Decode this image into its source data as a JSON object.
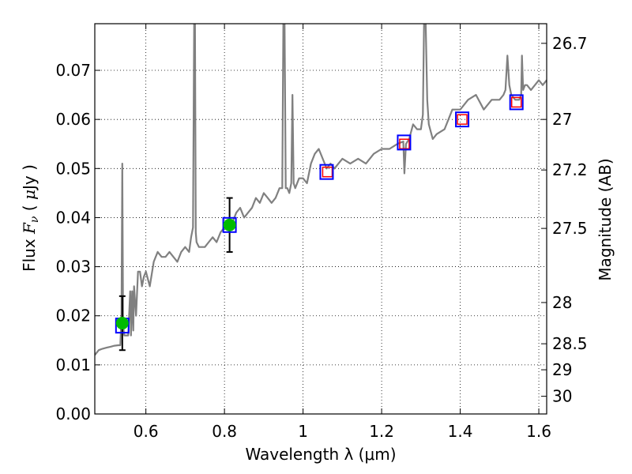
{
  "chart_data": {
    "type": "line",
    "xlabel": "Wavelength  λ (μm)",
    "ylabel": "Flux  F_ν  ( μJy )",
    "ylabel_parts": {
      "prefix": "Flux  ",
      "sym": "F",
      "sub": "ν",
      "mu": "μ",
      "open": "(  ",
      "unit": "Jy )"
    },
    "y2label": "Magnitude (AB)",
    "xlim": [
      0.47,
      1.62
    ],
    "ylim": [
      0.0,
      0.0795
    ],
    "xticks": [
      0.6,
      0.8,
      1.0,
      1.2,
      1.4,
      1.6
    ],
    "xtick_labels": [
      "0.6",
      "0.8",
      "1",
      "1.2",
      "1.4",
      "1.6"
    ],
    "yticks": [
      0.0,
      0.01,
      0.02,
      0.03,
      0.04,
      0.05,
      0.06,
      0.07
    ],
    "ytick_labels": [
      "0.00",
      "0.01",
      "0.02",
      "0.03",
      "0.04",
      "0.05",
      "0.06",
      "0.07"
    ],
    "y2ticks": [
      {
        "flux": 0.0755,
        "label": "26.7"
      },
      {
        "flux": 0.06,
        "label": "27"
      },
      {
        "flux": 0.0497,
        "label": "27.2"
      },
      {
        "flux": 0.0378,
        "label": "27.5"
      },
      {
        "flux": 0.0227,
        "label": "28"
      },
      {
        "flux": 0.0143,
        "label": "28.5"
      },
      {
        "flux": 0.009,
        "label": "29"
      },
      {
        "flux": 0.0036,
        "label": "30"
      }
    ],
    "grid": true,
    "colors": {
      "spectrum": "#808080",
      "photometry_box": "#0000ff",
      "model_box": "#ff0000",
      "measured_point": "#00bb00",
      "errorbar": "#000000"
    },
    "spectrum": {
      "x": [
        0.47,
        0.48,
        0.49,
        0.5,
        0.51,
        0.52,
        0.53,
        0.535,
        0.538,
        0.54,
        0.542,
        0.545,
        0.55,
        0.555,
        0.56,
        0.562,
        0.565,
        0.568,
        0.57,
        0.575,
        0.58,
        0.585,
        0.59,
        0.595,
        0.6,
        0.61,
        0.62,
        0.63,
        0.64,
        0.65,
        0.66,
        0.67,
        0.68,
        0.69,
        0.7,
        0.71,
        0.715,
        0.72,
        0.723,
        0.725,
        0.727,
        0.729,
        0.735,
        0.74,
        0.75,
        0.76,
        0.77,
        0.78,
        0.79,
        0.8,
        0.81,
        0.82,
        0.83,
        0.84,
        0.85,
        0.86,
        0.87,
        0.88,
        0.89,
        0.9,
        0.91,
        0.92,
        0.93,
        0.94,
        0.947,
        0.95,
        0.953,
        0.956,
        0.96,
        0.965,
        0.97,
        0.973,
        0.976,
        0.98,
        0.99,
        1.0,
        1.01,
        1.02,
        1.03,
        1.04,
        1.05,
        1.06,
        1.07,
        1.08,
        1.09,
        1.1,
        1.12,
        1.14,
        1.16,
        1.18,
        1.2,
        1.22,
        1.24,
        1.255,
        1.258,
        1.262,
        1.27,
        1.28,
        1.29,
        1.3,
        1.305,
        1.308,
        1.312,
        1.316,
        1.32,
        1.33,
        1.34,
        1.36,
        1.38,
        1.4,
        1.42,
        1.44,
        1.46,
        1.48,
        1.5,
        1.51,
        1.515,
        1.52,
        1.525,
        1.53,
        1.54,
        1.55,
        1.555,
        1.557,
        1.56,
        1.565,
        1.57,
        1.58,
        1.59,
        1.6,
        1.61,
        1.62
      ],
      "y": [
        0.012,
        0.013,
        0.0133,
        0.0135,
        0.0137,
        0.0139,
        0.014,
        0.014,
        0.02,
        0.051,
        0.018,
        0.016,
        0.016,
        0.016,
        0.025,
        0.016,
        0.025,
        0.017,
        0.026,
        0.02,
        0.029,
        0.029,
        0.026,
        0.028,
        0.029,
        0.026,
        0.031,
        0.033,
        0.032,
        0.032,
        0.033,
        0.032,
        0.031,
        0.033,
        0.034,
        0.033,
        0.036,
        0.038,
        0.08,
        0.08,
        0.037,
        0.035,
        0.034,
        0.034,
        0.034,
        0.035,
        0.036,
        0.035,
        0.037,
        0.038,
        0.0385,
        0.039,
        0.041,
        0.042,
        0.04,
        0.041,
        0.042,
        0.044,
        0.043,
        0.045,
        0.044,
        0.043,
        0.044,
        0.046,
        0.046,
        0.08,
        0.08,
        0.046,
        0.046,
        0.045,
        0.047,
        0.065,
        0.047,
        0.046,
        0.048,
        0.048,
        0.047,
        0.051,
        0.053,
        0.054,
        0.052,
        0.05,
        0.051,
        0.05,
        0.051,
        0.052,
        0.051,
        0.052,
        0.051,
        0.053,
        0.054,
        0.054,
        0.055,
        0.0555,
        0.049,
        0.055,
        0.056,
        0.059,
        0.058,
        0.058,
        0.061,
        0.08,
        0.08,
        0.064,
        0.059,
        0.056,
        0.057,
        0.058,
        0.062,
        0.062,
        0.064,
        0.065,
        0.062,
        0.064,
        0.064,
        0.065,
        0.066,
        0.073,
        0.067,
        0.065,
        0.064,
        0.064,
        0.065,
        0.073,
        0.066,
        0.067,
        0.067,
        0.066,
        0.067,
        0.068,
        0.067,
        0.068
      ]
    },
    "photometry_boxes": [
      {
        "x": 0.54,
        "y": 0.018
      },
      {
        "x": 0.813,
        "y": 0.0385
      },
      {
        "x": 1.06,
        "y": 0.0493
      },
      {
        "x": 1.257,
        "y": 0.0553
      },
      {
        "x": 1.405,
        "y": 0.06
      },
      {
        "x": 1.543,
        "y": 0.0635
      }
    ],
    "model_boxes": [
      {
        "x": 1.062,
        "y": 0.0493
      },
      {
        "x": 1.258,
        "y": 0.055
      },
      {
        "x": 1.405,
        "y": 0.06
      },
      {
        "x": 1.543,
        "y": 0.0635
      }
    ],
    "measured_points": [
      {
        "x": 0.54,
        "y": 0.0185,
        "yerr_low": 0.013,
        "yerr_high": 0.024
      },
      {
        "x": 0.813,
        "y": 0.0385,
        "yerr_low": 0.033,
        "yerr_high": 0.044
      }
    ]
  }
}
